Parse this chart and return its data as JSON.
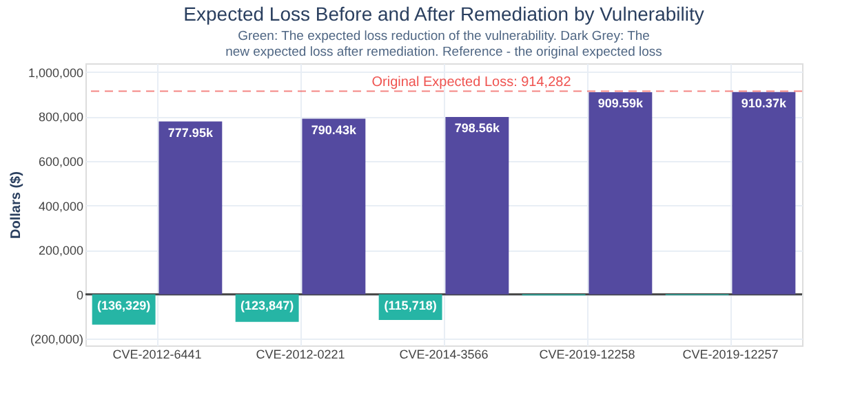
{
  "chart_data": {
    "type": "bar",
    "title": "Expected Loss Before and After Remediation by Vulnerability",
    "subtitle": "Green: The expected loss reduction of the vulnerability. Dark Grey: The new expected loss after remediation. Reference - the original expected loss",
    "ylabel": "Dollars ($)",
    "categories": [
      "CVE-2012-6441",
      "CVE-2012-0221",
      "CVE-2014-3566",
      "CVE-2019-12258",
      "CVE-2019-12257"
    ],
    "series": [
      {
        "color": "#26b5a5",
        "values": [
          -136329,
          -123847,
          -115718,
          -5000,
          -4000
        ],
        "value_labels": [
          "(136,329)",
          "(123,847)",
          "(115,718)",
          null,
          null
        ]
      },
      {
        "color": "#544aa0",
        "values": [
          777950,
          790430,
          798560,
          909590,
          910370
        ],
        "value_labels": [
          "777.95k",
          "790.43k",
          "798.56k",
          "909.59k",
          "910.37k"
        ]
      }
    ],
    "ylim": [
      -230000,
      1040000
    ],
    "yticks": [
      {
        "value": -200000,
        "label": "(200,000)"
      },
      0,
      {
        "value": 200000,
        "label": "200,000"
      },
      {
        "value": 400000,
        "label": "400,000"
      },
      {
        "value": 600000,
        "label": "600,000"
      },
      {
        "value": 800000,
        "label": "800,000"
      },
      {
        "value": 1000000,
        "label": "1,000,000"
      }
    ],
    "ref_lines": [
      {
        "axis": "y",
        "value": 914282,
        "label": "Original Expected Loss: 914,282",
        "color": "#ef5350",
        "line_style": "dashed"
      }
    ],
    "grid": true
  }
}
